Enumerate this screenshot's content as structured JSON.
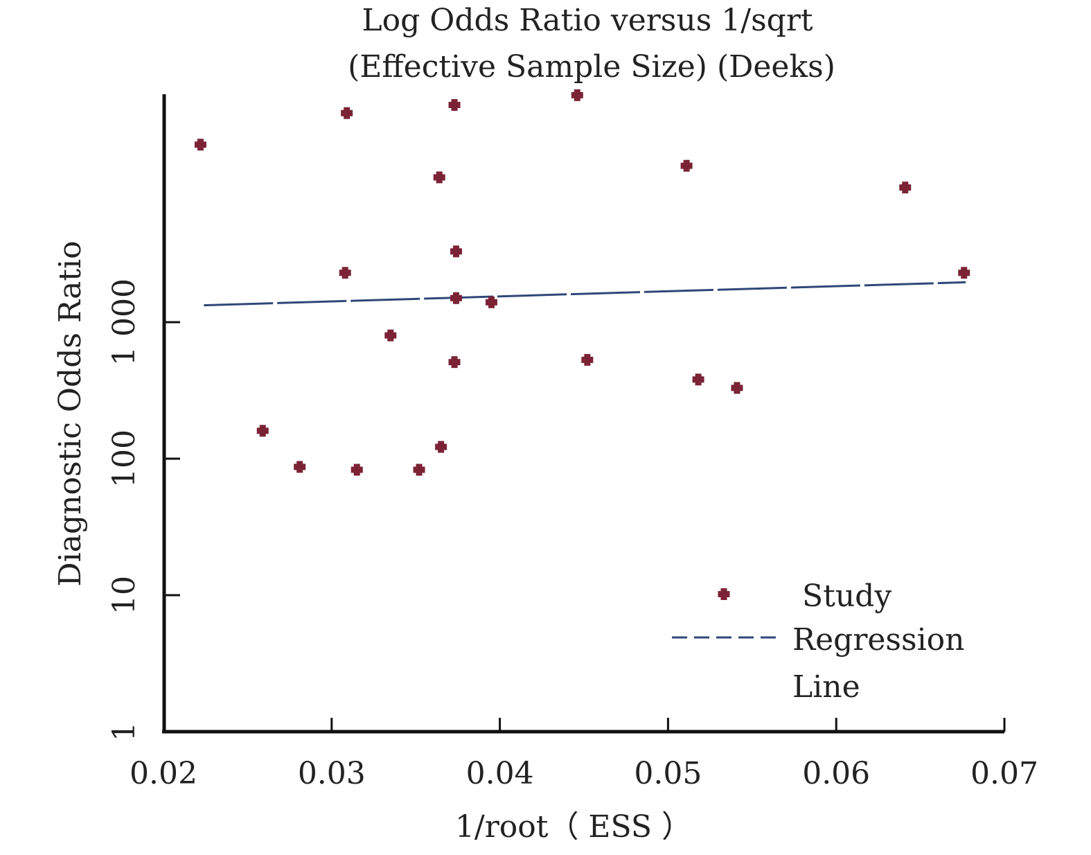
{
  "chart_data": {
    "type": "scatter",
    "title_lines": [
      "Log Odds Ratio versus 1/sqrt",
      "(Effective Sample Size) (Deeks)"
    ],
    "xlabel": "1/root（ ESS ）",
    "ylabel": "Diagnostic Odds Ratio",
    "x_ticks": [
      0.02,
      0.03,
      0.04,
      0.05,
      0.06,
      0.07
    ],
    "x_tick_labels": [
      "0.02",
      "0.03",
      "0.04",
      "0.05",
      "0.06",
      "0.07"
    ],
    "y_ticks": [
      1,
      10,
      100,
      1000
    ],
    "y_tick_labels": [
      "1",
      "10",
      "100",
      "1 000"
    ],
    "xlim": [
      0.02,
      0.07
    ],
    "ylim": [
      1,
      50000
    ],
    "y_scale": "log",
    "grid": false,
    "legend_position": "bottom-right",
    "legend_labels": [
      "Study",
      "Regression",
      "Line"
    ],
    "series": [
      {
        "name": "Study",
        "kind": "points",
        "color": "#7b2335",
        "points": [
          {
            "x": 0.0222,
            "y": 20000
          },
          {
            "x": 0.0309,
            "y": 34000
          },
          {
            "x": 0.0373,
            "y": 39000
          },
          {
            "x": 0.0446,
            "y": 46000
          },
          {
            "x": 0.0364,
            "y": 11500
          },
          {
            "x": 0.0511,
            "y": 14000
          },
          {
            "x": 0.0641,
            "y": 9700
          },
          {
            "x": 0.0374,
            "y": 3300
          },
          {
            "x": 0.0308,
            "y": 2300
          },
          {
            "x": 0.0676,
            "y": 2300
          },
          {
            "x": 0.0374,
            "y": 1500
          },
          {
            "x": 0.0395,
            "y": 1400
          },
          {
            "x": 0.0335,
            "y": 800
          },
          {
            "x": 0.0373,
            "y": 510
          },
          {
            "x": 0.0452,
            "y": 530
          },
          {
            "x": 0.0518,
            "y": 380
          },
          {
            "x": 0.0541,
            "y": 330
          },
          {
            "x": 0.0259,
            "y": 160
          },
          {
            "x": 0.0365,
            "y": 122
          },
          {
            "x": 0.0281,
            "y": 87
          },
          {
            "x": 0.0315,
            "y": 83
          },
          {
            "x": 0.0352,
            "y": 83
          }
        ]
      },
      {
        "name": "Regression Line",
        "kind": "dashed-line",
        "color": "#2f4779",
        "x": [
          0.0224,
          0.0677
        ],
        "y": [
          1330,
          1960
        ]
      }
    ]
  }
}
